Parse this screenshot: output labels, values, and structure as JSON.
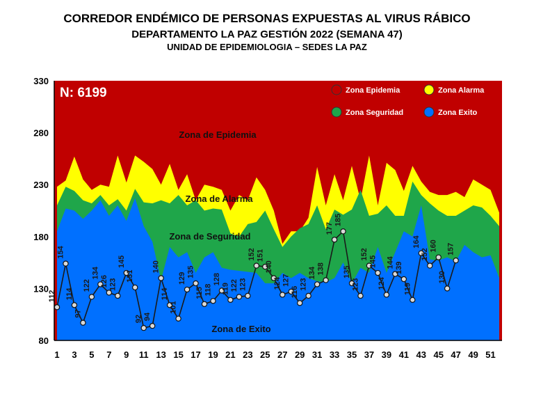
{
  "title": "CORREDOR ENDÉMICO DE PERSONAS EXPUESTAS AL VIRUS RÁBICO",
  "subtitle": "DEPARTAMENTO  LA PAZ GESTIÓN 2022 (SEMANA 47)",
  "subtitle2": "UNIDAD DE EPIDEMIOLOGIA – SEDES LA PAZ",
  "n_label": "N: 6199",
  "zone_labels": {
    "epidemia": "Zona de Epidemia",
    "alarma": "Zona de Alarma",
    "seguridad": "Zona de Seguridad",
    "exito": "Zona de Exito"
  },
  "legend": [
    {
      "label": "Zona Epidemia",
      "color": "#c00000"
    },
    {
      "label": "Zona Alarma",
      "color": "#ffff00"
    },
    {
      "label": "Zona Seguridad",
      "color": "#1fa64a"
    },
    {
      "label": "Zona Exito",
      "color": "#0070ff"
    }
  ],
  "colors": {
    "epidemia": "#c00000",
    "alarma": "#ffff00",
    "seguridad": "#1fa64a",
    "exito": "#0070ff",
    "line": "#1a1a1a",
    "marker": "#d9d9d9"
  },
  "chart_data": {
    "type": "area",
    "ylim": [
      80,
      330
    ],
    "yticks": [
      80,
      130,
      180,
      230,
      280,
      330
    ],
    "xticks": [
      1,
      3,
      5,
      7,
      9,
      11,
      13,
      15,
      17,
      19,
      21,
      23,
      25,
      27,
      29,
      31,
      33,
      35,
      37,
      39,
      41,
      43,
      45,
      47,
      49,
      51
    ],
    "weeks": [
      1,
      2,
      3,
      4,
      5,
      6,
      7,
      8,
      9,
      10,
      11,
      12,
      13,
      14,
      15,
      16,
      17,
      18,
      19,
      20,
      21,
      22,
      23,
      24,
      25,
      26,
      27,
      28,
      29,
      30,
      31,
      32,
      33,
      34,
      35,
      36,
      37,
      38,
      39,
      40,
      41,
      42,
      43,
      44,
      45,
      46,
      47,
      48,
      49,
      50,
      51,
      52
    ],
    "series": [
      {
        "name": "Zona Exito",
        "values": [
          185,
          207,
          205,
          197,
          205,
          215,
          200,
          210,
          195,
          217,
          190,
          175,
          138,
          170,
          160,
          165,
          145,
          160,
          165,
          150,
          148,
          147,
          146,
          145,
          135,
          135,
          145,
          140,
          145,
          140,
          137,
          136,
          140,
          155,
          135,
          150,
          145,
          170,
          145,
          165,
          185,
          180,
          210,
          158,
          157,
          160,
          156,
          172,
          165,
          160,
          162,
          140
        ]
      },
      {
        "name": "Zona Seguridad",
        "values": [
          210,
          228,
          224,
          215,
          212,
          220,
          210,
          216,
          205,
          226,
          213,
          212,
          215,
          212,
          220,
          210,
          215,
          205,
          207,
          206,
          183,
          180,
          192,
          194,
          205,
          187,
          170,
          180,
          188,
          192,
          210,
          187,
          206,
          201,
          206,
          225,
          200,
          202,
          210,
          200,
          200,
          233,
          220,
          212,
          205,
          200,
          200,
          205,
          210,
          208,
          200,
          190
        ]
      },
      {
        "name": "Zona Alarma",
        "values": [
          228,
          234,
          257,
          235,
          225,
          230,
          228,
          258,
          232,
          258,
          252,
          245,
          230,
          250,
          225,
          240,
          215,
          230,
          228,
          225,
          205,
          220,
          215,
          237,
          225,
          205,
          173,
          185,
          185,
          198,
          247,
          210,
          240,
          215,
          248,
          215,
          258,
          210,
          251,
          244,
          224,
          248,
          233,
          223,
          220,
          220,
          223,
          218,
          235,
          230,
          225,
          203
        ]
      }
    ],
    "observed": {
      "name": "2022",
      "weeks": [
        1,
        2,
        3,
        4,
        5,
        6,
        7,
        8,
        9,
        10,
        11,
        12,
        13,
        14,
        15,
        16,
        17,
        18,
        19,
        20,
        21,
        22,
        23,
        24,
        25,
        26,
        27,
        28,
        29,
        30,
        31,
        32,
        33,
        34,
        35,
        36,
        37,
        38,
        39,
        40,
        41,
        42,
        43,
        44,
        45,
        46,
        47
      ],
      "values": [
        112,
        154,
        114,
        97,
        122,
        134,
        126,
        123,
        145,
        131,
        92,
        94,
        140,
        114,
        101,
        129,
        135,
        115,
        118,
        128,
        119,
        122,
        123,
        152,
        151,
        140,
        124,
        127,
        116,
        123,
        134,
        138,
        177,
        185,
        135,
        123,
        152,
        145,
        124,
        144,
        139,
        119,
        164,
        152,
        160,
        130,
        157
      ]
    }
  }
}
